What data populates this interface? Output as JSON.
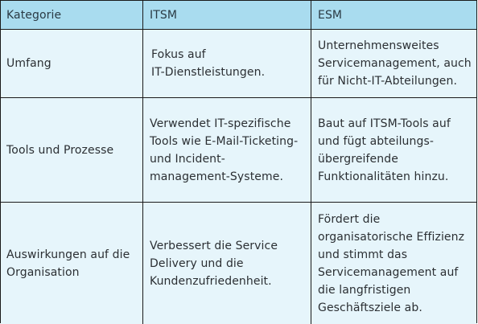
{
  "table": {
    "headers": [
      "Kategorie",
      "ITSM",
      "ESM"
    ],
    "rows": [
      {
        "category": "Umfang",
        "itsm": "Fokus auf\nIT-Dienstleistungen.",
        "esm": "Unternehmensweites\nServicemanagement, auch\nfür Nicht-IT-Abteilungen."
      },
      {
        "category": "Tools und Prozesse",
        "itsm": "Verwendet IT-spezifische\nTools wie E-Mail-Ticketing-\nund Incident-\nmanagement-Systeme.",
        "esm": "Baut auf ITSM-Tools auf\nund fügt abteilungs-\nübergreifende\nFunktionalitäten hinzu."
      },
      {
        "category": "Auswirkungen auf die\nOrganisation",
        "itsm": "Verbessert die Service\nDelivery und die\nKundenzufriedenheit.",
        "esm": "Fördert die\norganisatorische Effizienz\nund stimmt das\nServicemanagement auf\ndie langfristigen\nGeschäftsziele ab."
      }
    ]
  },
  "colors": {
    "header_bg": "#a9dcef",
    "row_bg": "#e6f5fb",
    "border": "#1a1a1a"
  }
}
